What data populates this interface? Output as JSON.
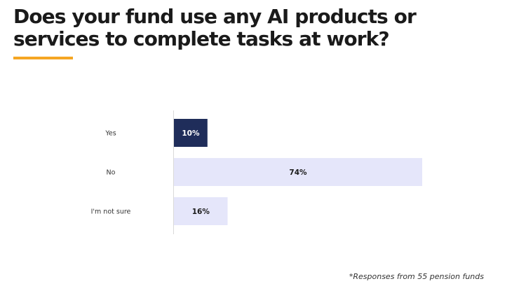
{
  "title": "Does your fund use any AI products or services to complete tasks at work?",
  "footnote": "*Responses from 55 pension funds",
  "colors": {
    "accent": "#f5a623",
    "highlight_bar": "#1f2d5a",
    "bar": "#e5e6fa",
    "axis": "#d9d9d9"
  },
  "chart_data": {
    "type": "bar",
    "orientation": "horizontal",
    "categories": [
      "Yes",
      "No",
      "I'm not sure"
    ],
    "values": [
      10,
      74,
      16
    ],
    "value_labels": [
      "10%",
      "74%",
      "16%"
    ],
    "unit": "%",
    "xlim": [
      0,
      74
    ],
    "highlight_index": 0,
    "grid": false,
    "legend": "none"
  }
}
